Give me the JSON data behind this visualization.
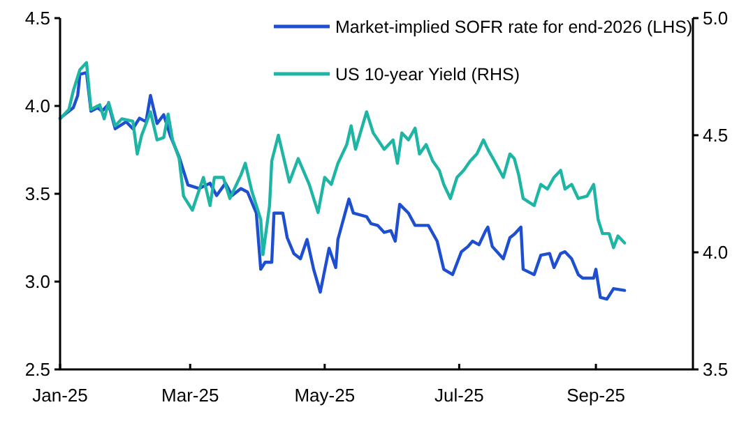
{
  "chart_data": {
    "type": "line",
    "legend": "top",
    "line_style": "solid",
    "marker": "none",
    "grid": false,
    "xlim": [
      "2025-01-01",
      "2025-10-15"
    ],
    "xticks": [
      {
        "value": "2025-01-01",
        "label": "Jan-25"
      },
      {
        "value": "2025-03-01",
        "label": "Mar-25"
      },
      {
        "value": "2025-05-01",
        "label": "May-25"
      },
      {
        "value": "2025-07-01",
        "label": "Jul-25"
      },
      {
        "value": "2025-09-01",
        "label": "Sep-25"
      }
    ],
    "ylim": [
      2.5,
      4.5
    ],
    "yticks": [
      2.5,
      {
        "value": 3,
        "label": "3.0"
      },
      3.5,
      {
        "value": 4,
        "label": "4.0"
      },
      4.5
    ],
    "y2lim": [
      3.5,
      5
    ],
    "y2ticks": [
      3.5,
      {
        "value": 4,
        "label": "4.0"
      },
      4.5,
      {
        "value": 5,
        "label": "5.0"
      }
    ],
    "series": [
      {
        "name": "Market-implied SOFR rate for end-2026 (LHS)",
        "color": "#1f4fd1",
        "x": [
          "2025-01-01",
          "2025-01-07",
          "2025-01-09",
          "2025-01-10",
          "2025-01-13",
          "2025-01-15",
          "2025-01-18",
          "2025-01-20",
          "2025-01-23",
          "2025-01-26",
          "2025-01-31",
          "2025-02-03",
          "2025-02-06",
          "2025-02-09",
          "2025-02-11",
          "2025-02-14",
          "2025-02-17",
          "2025-02-20",
          "2025-02-24",
          "2025-02-28",
          "2025-03-05",
          "2025-03-10",
          "2025-03-13",
          "2025-03-17",
          "2025-03-20",
          "2025-03-24",
          "2025-03-27",
          "2025-03-31",
          "2025-04-02",
          "2025-04-04",
          "2025-04-07",
          "2025-04-08",
          "2025-04-12",
          "2025-04-14",
          "2025-04-17",
          "2025-04-20",
          "2025-04-23",
          "2025-04-26",
          "2025-04-29",
          "2025-05-03",
          "2025-05-06",
          "2025-05-07",
          "2025-05-12",
          "2025-05-14",
          "2025-05-20",
          "2025-05-22",
          "2025-05-25",
          "2025-05-28",
          "2025-05-31",
          "2025-06-02",
          "2025-06-04",
          "2025-06-08",
          "2025-06-11",
          "2025-06-17",
          "2025-06-21",
          "2025-06-24",
          "2025-06-28",
          "2025-07-02",
          "2025-07-05",
          "2025-07-07",
          "2025-07-10",
          "2025-07-13",
          "2025-07-14",
          "2025-07-16",
          "2025-07-21",
          "2025-07-24",
          "2025-07-26",
          "2025-07-29",
          "2025-07-30",
          "2025-08-04",
          "2025-08-07",
          "2025-08-11",
          "2025-08-13",
          "2025-08-16",
          "2025-08-18",
          "2025-08-21",
          "2025-08-24",
          "2025-08-26",
          "2025-08-31",
          "2025-09-01",
          "2025-09-03",
          "2025-09-06",
          "2025-09-09",
          "2025-09-14"
        ],
        "values": [
          3.93,
          3.99,
          4.06,
          4.18,
          4.19,
          3.97,
          3.99,
          3.97,
          4.01,
          3.87,
          3.91,
          3.87,
          3.93,
          3.91,
          4.06,
          3.9,
          3.95,
          3.83,
          3.71,
          3.55,
          3.53,
          3.56,
          3.49,
          3.56,
          3.49,
          3.53,
          3.51,
          3.39,
          3.07,
          3.11,
          3.11,
          3.39,
          3.39,
          3.25,
          3.16,
          3.13,
          3.24,
          3.07,
          2.94,
          3.19,
          3.08,
          3.24,
          3.47,
          3.39,
          3.37,
          3.33,
          3.32,
          3.28,
          3.29,
          3.23,
          3.44,
          3.39,
          3.32,
          3.32,
          3.23,
          3.07,
          3.04,
          3.17,
          3.2,
          3.23,
          3.21,
          3.29,
          3.31,
          3.2,
          3.13,
          3.25,
          3.27,
          3.31,
          3.07,
          3.04,
          3.15,
          3.16,
          3.08,
          3.16,
          3.17,
          3.13,
          3.04,
          3.02,
          3.02,
          3.07,
          2.91,
          2.9,
          2.96,
          2.95
        ]
      },
      {
        "name": "US 10-year Yield (RHS)",
        "color": "#1fb5a5",
        "axis": "y2",
        "x": [
          "2025-01-01",
          "2025-01-05",
          "2025-01-07",
          "2025-01-10",
          "2025-01-13",
          "2025-01-15",
          "2025-01-19",
          "2025-01-21",
          "2025-01-23",
          "2025-01-26",
          "2025-01-29",
          "2025-02-03",
          "2025-02-05",
          "2025-02-07",
          "2025-02-11",
          "2025-02-14",
          "2025-02-17",
          "2025-02-19",
          "2025-02-21",
          "2025-02-24",
          "2025-02-26",
          "2025-03-02",
          "2025-03-07",
          "2025-03-10",
          "2025-03-12",
          "2025-03-16",
          "2025-03-19",
          "2025-03-24",
          "2025-03-26",
          "2025-03-29",
          "2025-04-02",
          "2025-04-03",
          "2025-04-06",
          "2025-04-07",
          "2025-04-10",
          "2025-04-15",
          "2025-04-19",
          "2025-04-24",
          "2025-04-28",
          "2025-05-01",
          "2025-05-04",
          "2025-05-07",
          "2025-05-11",
          "2025-05-13",
          "2025-05-15",
          "2025-05-20",
          "2025-05-23",
          "2025-05-28",
          "2025-06-01",
          "2025-06-03",
          "2025-06-05",
          "2025-06-08",
          "2025-06-11",
          "2025-06-13",
          "2025-06-16",
          "2025-06-19",
          "2025-06-22",
          "2025-06-24",
          "2025-06-27",
          "2025-06-30",
          "2025-07-03",
          "2025-07-06",
          "2025-07-09",
          "2025-07-12",
          "2025-07-14",
          "2025-07-17",
          "2025-07-21",
          "2025-07-24",
          "2025-07-26",
          "2025-07-28",
          "2025-07-30",
          "2025-08-04",
          "2025-08-07",
          "2025-08-10",
          "2025-08-13",
          "2025-08-16",
          "2025-08-18",
          "2025-08-21",
          "2025-08-24",
          "2025-08-28",
          "2025-08-31",
          "2025-09-02",
          "2025-09-04",
          "2025-09-07",
          "2025-09-09",
          "2025-09-11",
          "2025-09-14"
        ],
        "values": [
          4.57,
          4.61,
          4.69,
          4.78,
          4.81,
          4.61,
          4.63,
          4.57,
          4.64,
          4.54,
          4.57,
          4.56,
          4.42,
          4.5,
          4.6,
          4.48,
          4.49,
          4.59,
          4.48,
          4.4,
          4.24,
          4.18,
          4.32,
          4.2,
          4.32,
          4.32,
          4.23,
          4.33,
          4.38,
          4.26,
          4.14,
          3.99,
          4.2,
          4.39,
          4.5,
          4.3,
          4.4,
          4.29,
          4.17,
          4.32,
          4.29,
          4.38,
          4.46,
          4.54,
          4.44,
          4.6,
          4.51,
          4.44,
          4.48,
          4.38,
          4.51,
          4.48,
          4.53,
          4.42,
          4.46,
          4.39,
          4.35,
          4.29,
          4.23,
          4.32,
          4.35,
          4.39,
          4.42,
          4.48,
          4.44,
          4.39,
          4.32,
          4.42,
          4.4,
          4.33,
          4.23,
          4.2,
          4.29,
          4.27,
          4.32,
          4.35,
          4.27,
          4.29,
          4.23,
          4.24,
          4.29,
          4.14,
          4.08,
          4.08,
          4.02,
          4.07,
          4.04
        ]
      }
    ]
  }
}
